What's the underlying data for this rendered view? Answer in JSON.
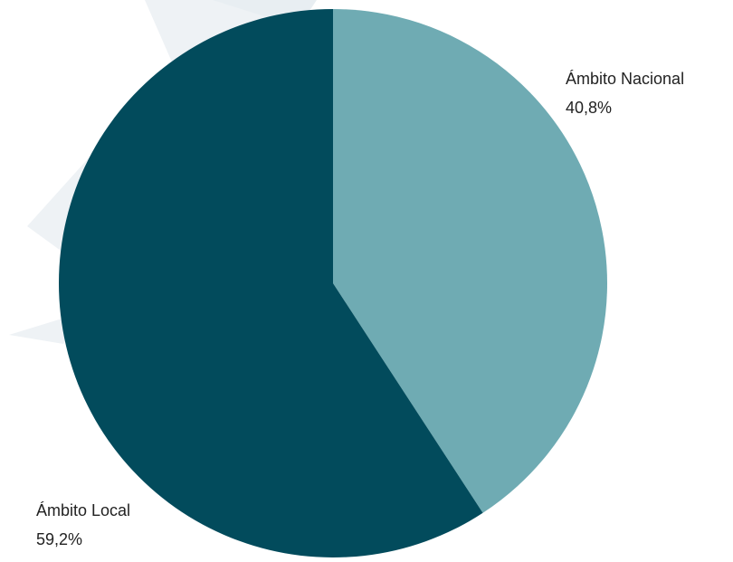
{
  "chart_data": {
    "type": "pie",
    "categories": [
      "Ámbito Nacional",
      "Ámbito Local"
    ],
    "values": [
      40.8,
      59.2
    ],
    "value_labels": [
      "40,8%",
      "59,2%"
    ],
    "colors": [
      "#6fabb3",
      "#024b5c"
    ]
  }
}
